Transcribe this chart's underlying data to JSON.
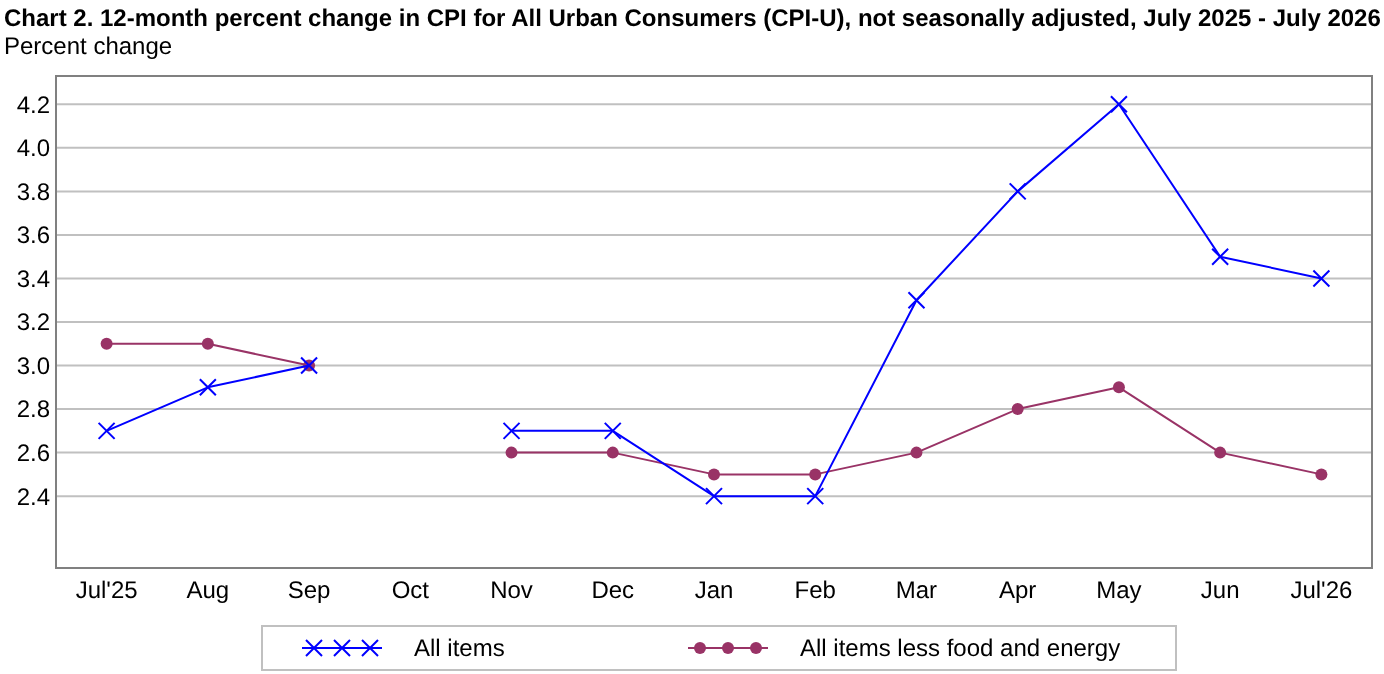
{
  "chart_data": {
    "type": "line",
    "title": "Chart 2. 12-month percent change in CPI for All Urban Consumers (CPI-U), not seasonally adjusted, July 2025 - July 2026",
    "ylabel": "Percent change",
    "categories": [
      "Jul'25",
      "Aug",
      "Sep",
      "Oct",
      "Nov",
      "Dec",
      "Jan",
      "Feb",
      "Mar",
      "Apr",
      "May",
      "Jun",
      "Jul'26"
    ],
    "series": [
      {
        "name": "All items",
        "color": "#0000ff",
        "marker": "cross",
        "values": [
          2.7,
          2.9,
          3.0,
          null,
          2.7,
          2.7,
          2.4,
          2.4,
          3.3,
          3.8,
          4.2,
          3.5,
          3.4
        ]
      },
      {
        "name": "All items less food and energy",
        "color": "#993366",
        "marker": "circle",
        "values": [
          3.1,
          3.1,
          3.0,
          null,
          2.6,
          2.6,
          2.5,
          2.5,
          2.6,
          2.8,
          2.9,
          2.6,
          2.5
        ]
      }
    ],
    "ylim": [
      2.07,
      4.33
    ],
    "yticks": [
      {
        "value": 2.4,
        "label": "2.4"
      },
      {
        "value": 2.6,
        "label": "2.6"
      },
      {
        "value": 2.8,
        "label": "2.8"
      },
      {
        "value": 3.0,
        "label": "3.0"
      },
      {
        "value": 3.2,
        "label": "3.2"
      },
      {
        "value": 3.4,
        "label": "3.4"
      },
      {
        "value": 3.6,
        "label": "3.6"
      },
      {
        "value": 3.8,
        "label": "3.8"
      },
      {
        "value": 4.0,
        "label": "4.0"
      },
      {
        "value": 4.2,
        "label": "4.2"
      }
    ],
    "grid": "y",
    "legend": "bottom",
    "line_style": "solid"
  }
}
